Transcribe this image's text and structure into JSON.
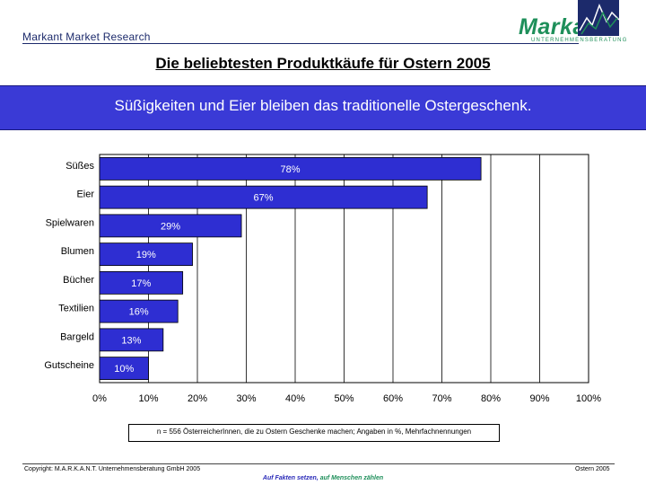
{
  "header": {
    "left_text": "Markant Market Research",
    "logo_word": "Markant",
    "logo_sub": "UNTERNEHMENSBERATUNG"
  },
  "title": "Die beliebtesten Produktkäufe für Ostern 2005",
  "banner": "Süßigkeiten und Eier bleiben das traditionelle Ostergeschenk.",
  "chart_data": {
    "type": "bar",
    "orientation": "horizontal",
    "categories": [
      "Süßes",
      "Eier",
      "Spielwaren",
      "Blumen",
      "Bücher",
      "Textilien",
      "Bargeld",
      "Gutscheine"
    ],
    "values": [
      78,
      67,
      29,
      19,
      17,
      16,
      13,
      10
    ],
    "value_labels": [
      "78%",
      "67%",
      "29%",
      "19%",
      "17%",
      "16%",
      "13%",
      "10%"
    ],
    "x_ticks": [
      "0%",
      "10%",
      "20%",
      "30%",
      "40%",
      "50%",
      "60%",
      "70%",
      "80%",
      "90%",
      "100%"
    ],
    "xlim": [
      0,
      100
    ],
    "grid": "vertical",
    "bar_color": "#2e2ed2",
    "label_color": "#ffffff"
  },
  "note": "n = 556 ÖsterreicherInnen, die zu Ostern Geschenke machen; Angaben in  %,  Mehrfachnennungen",
  "footer": {
    "left": "Copyright: M.A.R.K.A.N.T. Unternehmensberatung GmbH 2005",
    "right": "Ostern 2005",
    "slogan_a": "Auf Fakten setzen,",
    "slogan_b": "auf Menschen zählen"
  },
  "colors": {
    "banner": "#3a3ad6",
    "brand_green": "#1e8f5a",
    "brand_navy": "#1c2a6b"
  }
}
